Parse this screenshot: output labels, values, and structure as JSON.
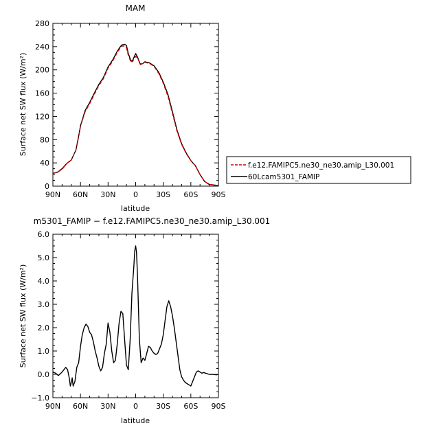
{
  "chart_data": [
    {
      "type": "line",
      "title": "MAM",
      "xlabel": "latitude",
      "ylabel": "Surface net SW flux (W/m²)",
      "xlim": [
        90,
        -90
      ],
      "ylim": [
        0,
        280
      ],
      "x_ticks": [
        90,
        60,
        30,
        0,
        -30,
        -60,
        -90
      ],
      "x_tick_labels": [
        "90N",
        "60N",
        "30N",
        "0",
        "30S",
        "60S",
        "90S"
      ],
      "y_ticks": [
        0,
        40,
        80,
        120,
        160,
        200,
        240,
        280
      ],
      "y_tick_labels": [
        "0",
        "40",
        "80",
        "120",
        "160",
        "200",
        "240",
        "280"
      ],
      "legend_position": "right",
      "series": [
        {
          "name": "f.e12.FAMIPC5.ne30_ne30.amip_L30.001",
          "color": "#cc0000",
          "dash": "dashed",
          "x": [
            90,
            85,
            80,
            75,
            70,
            65,
            62,
            60,
            55,
            50,
            45,
            40,
            35,
            30,
            25,
            20,
            17,
            15,
            12,
            10,
            8,
            5,
            3,
            2,
            0,
            -2,
            -5,
            -8,
            -10,
            -15,
            -20,
            -25,
            -30,
            -35,
            -40,
            -45,
            -50,
            -55,
            -60,
            -65,
            -70,
            -75,
            -80,
            -85,
            -90
          ],
          "y": [
            22,
            24,
            29,
            39,
            45,
            62,
            85,
            103,
            128,
            142,
            158,
            173,
            185,
            203,
            215,
            230,
            237,
            241,
            241,
            238,
            225,
            213,
            215,
            219,
            223,
            221,
            209,
            211,
            213,
            211,
            206,
            194,
            177,
            155,
            125,
            94,
            72,
            56,
            44,
            35,
            20,
            8,
            3,
            2,
            1
          ]
        },
        {
          "name": "60Lcam5301_FAMIP",
          "color": "#000000",
          "dash": "solid",
          "x": [
            90,
            85,
            80,
            75,
            70,
            65,
            62,
            60,
            55,
            50,
            45,
            40,
            35,
            30,
            25,
            20,
            17,
            15,
            12,
            10,
            8,
            5,
            3,
            2,
            0,
            -2,
            -5,
            -8,
            -10,
            -15,
            -20,
            -25,
            -30,
            -35,
            -40,
            -45,
            -50,
            -55,
            -60,
            -65,
            -70,
            -75,
            -80,
            -85,
            -90
          ],
          "y": [
            22,
            24,
            30,
            39,
            45,
            62,
            86,
            104,
            130,
            144,
            160,
            175,
            187,
            205,
            217,
            232,
            239,
            243,
            244,
            242,
            228,
            215,
            217,
            221,
            228,
            222,
            210,
            211,
            214,
            212,
            207,
            196,
            179,
            158,
            128,
            96,
            73,
            57,
            44,
            35,
            20,
            8,
            3,
            2,
            1
          ]
        }
      ]
    },
    {
      "type": "line",
      "title": "m5301_FAMIP − f.e12.FAMIPC5.ne30_ne30.amip_L30.001",
      "xlabel": "latitude",
      "ylabel": "Surface net SW flux (W/m²)",
      "xlim": [
        90,
        -90
      ],
      "ylim": [
        -1.0,
        6.0
      ],
      "x_ticks": [
        90,
        60,
        30,
        0,
        -30,
        -60,
        -90
      ],
      "x_tick_labels": [
        "90N",
        "60N",
        "30N",
        "0",
        "30S",
        "60S",
        "90S"
      ],
      "y_ticks": [
        -1,
        0,
        1,
        2,
        3,
        4,
        5,
        6
      ],
      "y_tick_labels": [
        "−1.0",
        "0.0",
        "1.0",
        "2.0",
        "3.0",
        "4.0",
        "5.0",
        "6.0"
      ],
      "series": [
        {
          "color": "#000000",
          "dash": "solid",
          "x": [
            90,
            87,
            84,
            80,
            76,
            74,
            72,
            71,
            70,
            69,
            68,
            66,
            64,
            62,
            60,
            58,
            56,
            54,
            52,
            50,
            48,
            46,
            44,
            42,
            40,
            38,
            36,
            34,
            32,
            30,
            28,
            26,
            24,
            22,
            20,
            18,
            16,
            14,
            12,
            10,
            8,
            6,
            4,
            2,
            1,
            0,
            -1,
            -2,
            -4,
            -6,
            -8,
            -10,
            -12,
            -14,
            -16,
            -18,
            -20,
            -22,
            -24,
            -26,
            -28,
            -30,
            -32,
            -34,
            -36,
            -38,
            -40,
            -42,
            -44,
            -46,
            -48,
            -50,
            -52,
            -54,
            -56,
            -58,
            -60,
            -62,
            -64,
            -66,
            -68,
            -70,
            -72,
            -74,
            -76,
            -80,
            -84,
            -88,
            -90
          ],
          "y": [
            0.1,
            0.05,
            -0.05,
            0.1,
            0.3,
            0.2,
            -0.2,
            -0.5,
            -0.35,
            -0.15,
            -0.5,
            -0.3,
            0.3,
            0.5,
            1.2,
            1.7,
            2.0,
            2.15,
            2.05,
            1.8,
            1.7,
            1.4,
            1.0,
            0.7,
            0.35,
            0.15,
            0.3,
            0.9,
            1.3,
            2.2,
            1.8,
            1.0,
            0.5,
            0.6,
            1.3,
            2.2,
            2.7,
            2.6,
            1.5,
            0.4,
            0.2,
            1.5,
            3.5,
            4.6,
            5.3,
            5.5,
            5.2,
            4.2,
            1.5,
            0.5,
            0.7,
            0.6,
            0.9,
            1.2,
            1.15,
            1.0,
            0.9,
            0.85,
            0.9,
            1.1,
            1.3,
            1.7,
            2.3,
            2.9,
            3.15,
            2.9,
            2.5,
            2.0,
            1.4,
            0.8,
            0.2,
            -0.1,
            -0.25,
            -0.35,
            -0.4,
            -0.45,
            -0.5,
            -0.3,
            -0.1,
            0.1,
            0.15,
            0.1,
            0.05,
            0.08,
            0.05,
            0.0,
            0.0,
            -0.02,
            0.0
          ]
        }
      ]
    }
  ]
}
